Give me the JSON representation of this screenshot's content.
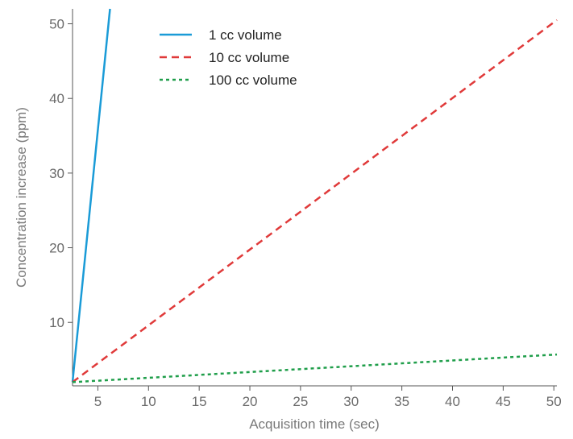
{
  "chart_data": {
    "type": "line",
    "title": "",
    "xlabel": "Acquisition time (sec)",
    "ylabel": "Concentration increase (ppm)",
    "xlim": [
      2.5,
      50.3
    ],
    "ylim": [
      1.5,
      52
    ],
    "xticks": [
      5,
      10,
      15,
      20,
      25,
      30,
      35,
      40,
      45,
      50
    ],
    "yticks": [
      10,
      20,
      30,
      40,
      50
    ],
    "grid": false,
    "legend_position": "top-center",
    "series": [
      {
        "name": "1 cc volume",
        "color": "#1a9bd7",
        "dash": "solid",
        "points": [
          [
            2.5,
            2.0
          ],
          [
            6.2,
            52.0
          ]
        ]
      },
      {
        "name": "10 cc volume",
        "color": "#e03a3a",
        "dash": "dashed",
        "points": [
          [
            2.5,
            2.0
          ],
          [
            50.3,
            50.5
          ]
        ]
      },
      {
        "name": "100 cc volume",
        "color": "#1f9e4a",
        "dash": "dotted",
        "points": [
          [
            2.5,
            2.0
          ],
          [
            50.3,
            5.7
          ]
        ]
      }
    ]
  }
}
